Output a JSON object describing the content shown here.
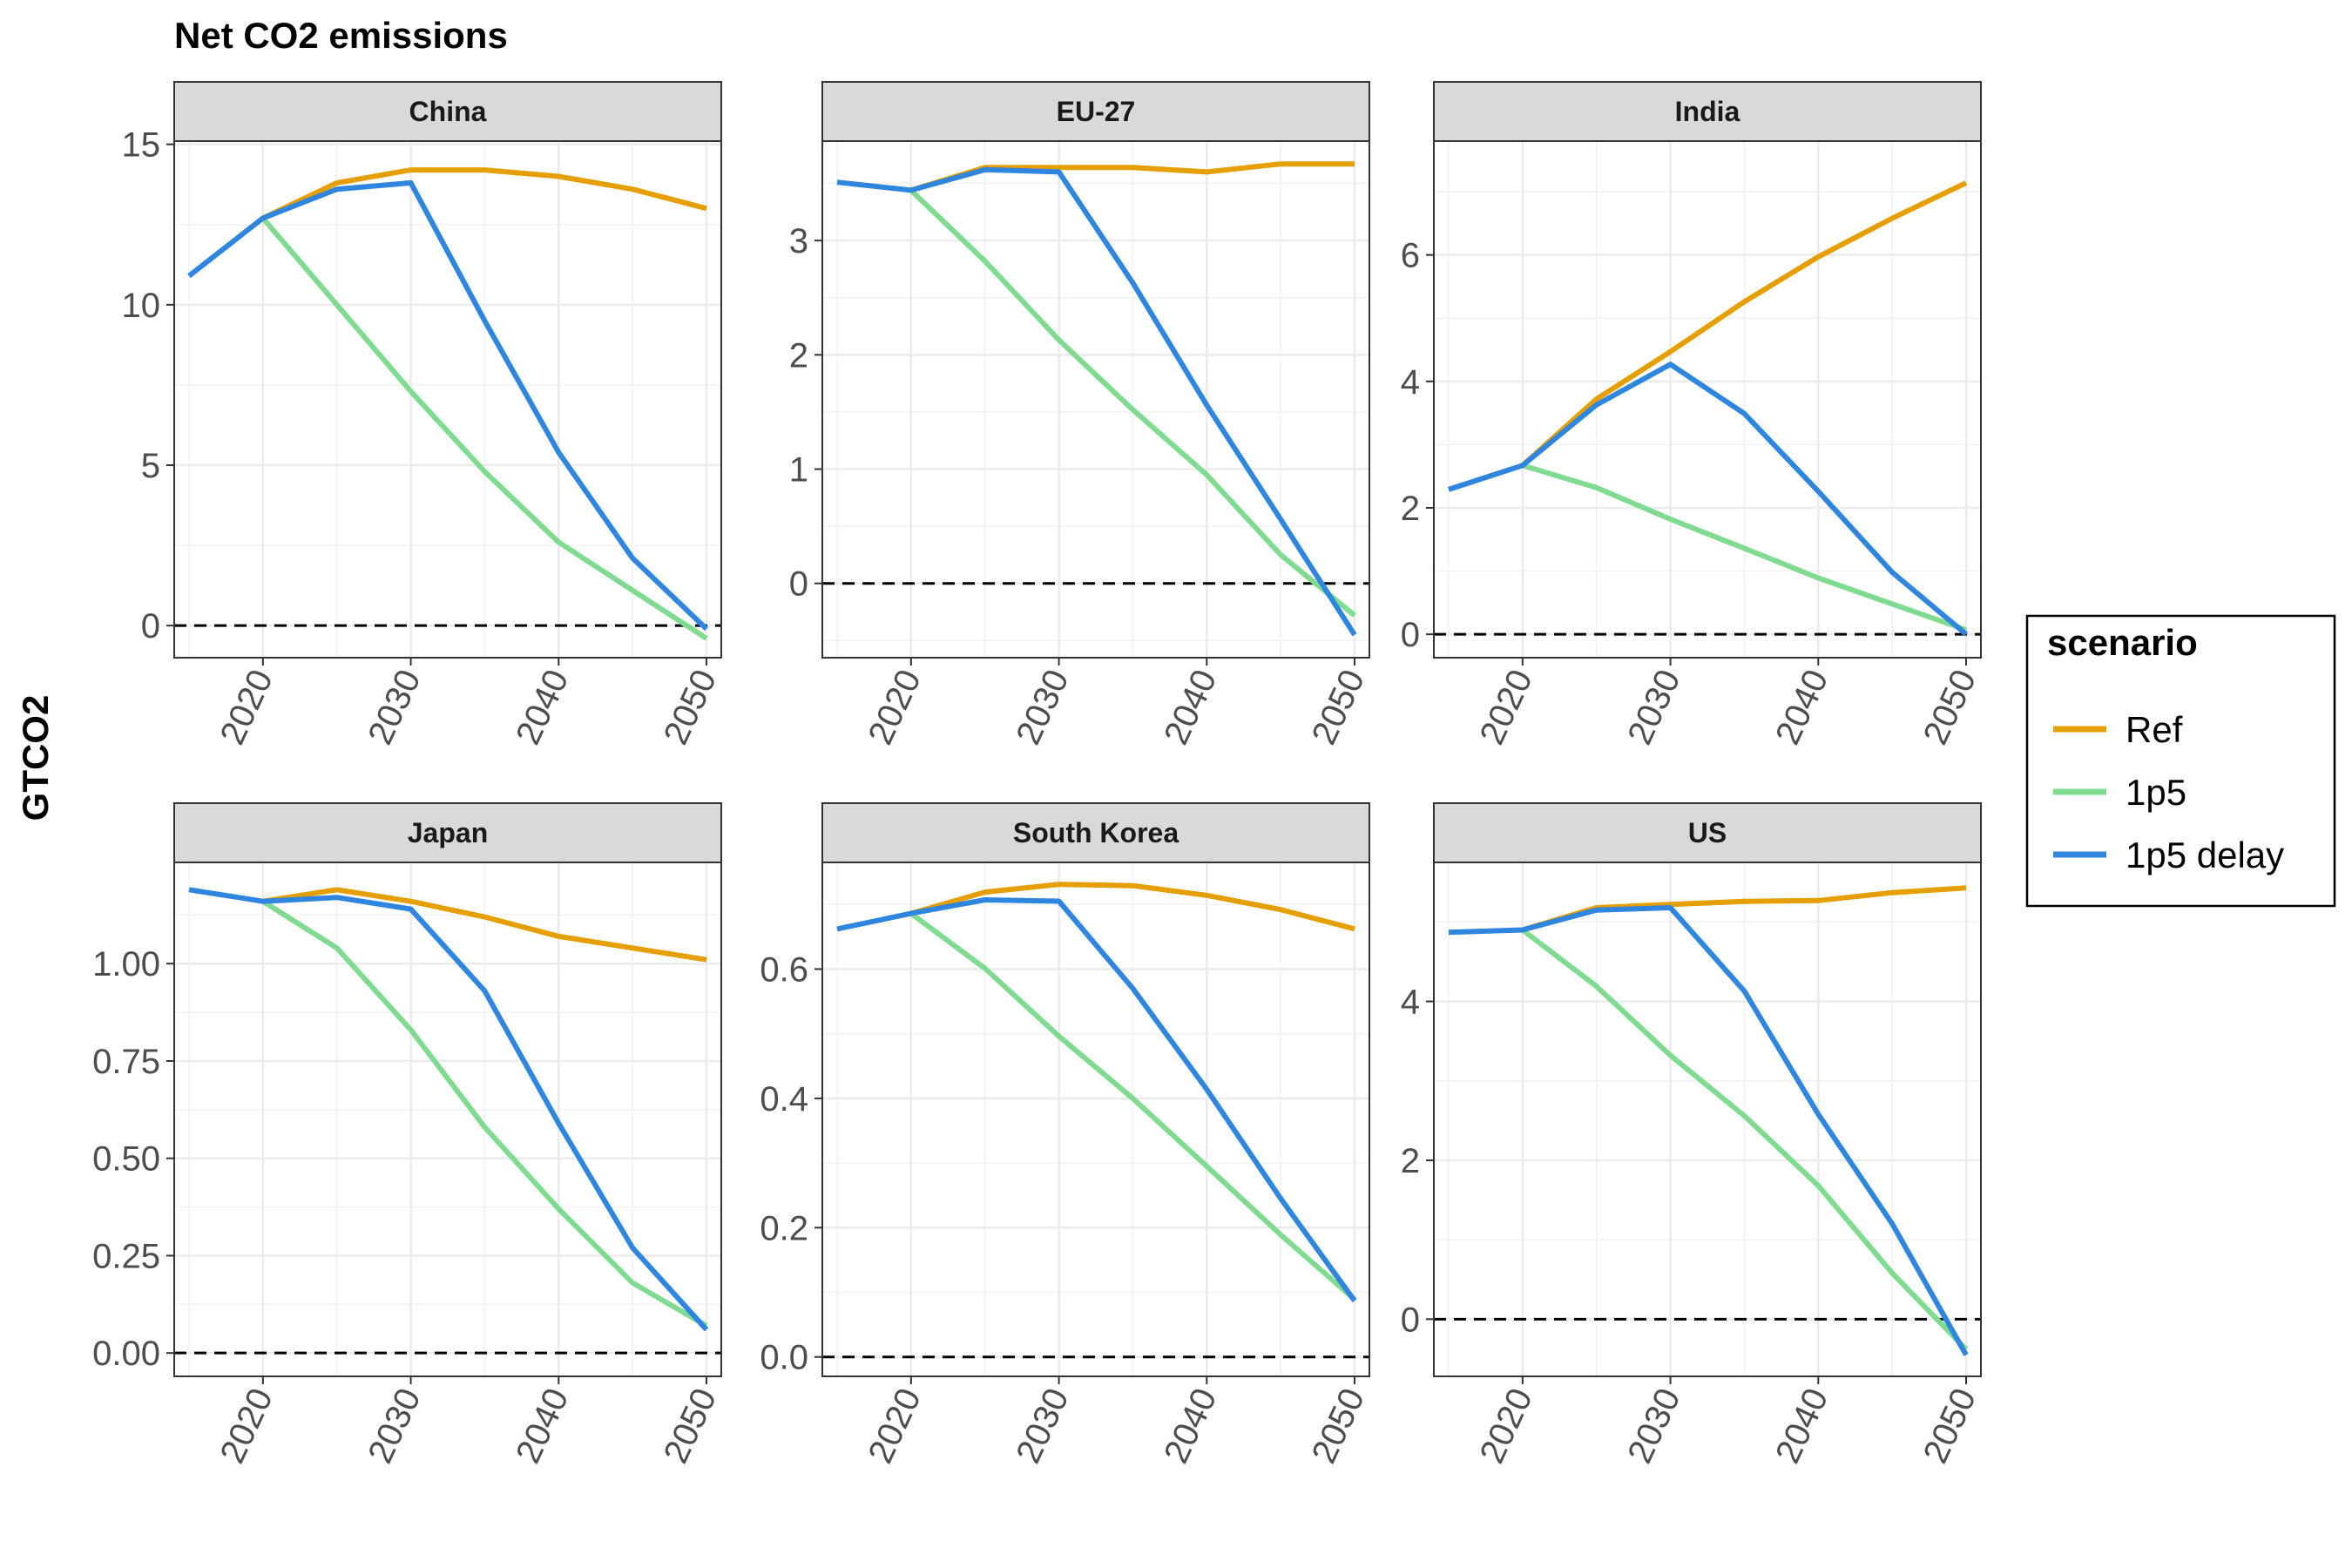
{
  "chart_data": {
    "type": "line",
    "title": "Net CO2 emissions",
    "ylabel": "GTCO2",
    "xlabel": "",
    "legend": {
      "title": "scenario",
      "placement": "right",
      "entries": [
        {
          "name": "Ref",
          "color": "#E69F00"
        },
        {
          "name": "1p5",
          "color": "#7FDB90"
        },
        {
          "name": "1p5 delay",
          "color": "#2F86DE"
        }
      ]
    },
    "reference_line": {
      "y": 0,
      "style": "dashed",
      "color": "#000000"
    },
    "grid": true,
    "x": [
      2015,
      2020,
      2025,
      2030,
      2035,
      2040,
      2045,
      2050
    ],
    "xlim": [
      2014,
      2051
    ],
    "x_ticks": [
      2020,
      2030,
      2040,
      2050
    ],
    "x_tick_labels": [
      "2020",
      "2030",
      "2040",
      "2050"
    ],
    "panels": [
      {
        "name": "China",
        "ylim": [
          -1.0,
          15.1
        ],
        "y_ticks": [
          0,
          5,
          10,
          15
        ],
        "y_tick_labels": [
          "0",
          "5",
          "10",
          "15"
        ],
        "series": [
          {
            "name": "Ref",
            "x": [
              2020,
              2025,
              2030,
              2035,
              2040,
              2045,
              2050
            ],
            "values": [
              12.7,
              13.8,
              14.2,
              14.2,
              14.0,
              13.6,
              13.0
            ]
          },
          {
            "name": "1p5",
            "x": [
              2020,
              2025,
              2030,
              2035,
              2040,
              2045,
              2050
            ],
            "values": [
              12.7,
              10.0,
              7.3,
              4.8,
              2.6,
              1.1,
              -0.4
            ]
          },
          {
            "name": "1p5 delay",
            "x": [
              2015,
              2020,
              2025,
              2030,
              2035,
              2040,
              2045,
              2050
            ],
            "values": [
              10.9,
              12.7,
              13.6,
              13.8,
              9.5,
              5.4,
              2.1,
              -0.1
            ]
          }
        ]
      },
      {
        "name": "EU-27",
        "ylim": [
          -0.65,
          3.87
        ],
        "y_ticks": [
          0,
          1,
          2,
          3
        ],
        "y_tick_labels": [
          "0",
          "1",
          "2",
          "3"
        ],
        "series": [
          {
            "name": "Ref",
            "x": [
              2020,
              2025,
              2030,
              2035,
              2040,
              2045,
              2050
            ],
            "values": [
              3.44,
              3.64,
              3.64,
              3.64,
              3.6,
              3.67,
              3.67
            ]
          },
          {
            "name": "1p5",
            "x": [
              2020,
              2025,
              2030,
              2035,
              2040,
              2045,
              2050
            ],
            "values": [
              3.44,
              2.82,
              2.13,
              1.52,
              0.95,
              0.25,
              -0.28
            ]
          },
          {
            "name": "1p5 delay",
            "x": [
              2015,
              2020,
              2025,
              2030,
              2035,
              2040,
              2045,
              2050
            ],
            "values": [
              3.51,
              3.44,
              3.62,
              3.6,
              2.63,
              1.56,
              0.56,
              -0.45
            ]
          }
        ]
      },
      {
        "name": "India",
        "ylim": [
          -0.37,
          7.8
        ],
        "y_ticks": [
          0,
          2,
          4,
          6
        ],
        "y_tick_labels": [
          "0",
          "2",
          "4",
          "6"
        ],
        "series": [
          {
            "name": "Ref",
            "x": [
              2020,
              2025,
              2030,
              2035,
              2040,
              2045,
              2050
            ],
            "values": [
              2.67,
              3.72,
              4.47,
              5.26,
              5.97,
              6.58,
              7.14
            ]
          },
          {
            "name": "1p5",
            "x": [
              2020,
              2025,
              2030,
              2035,
              2040,
              2045,
              2050
            ],
            "values": [
              2.67,
              2.32,
              1.82,
              1.36,
              0.89,
              0.48,
              0.07
            ]
          },
          {
            "name": "1p5 delay",
            "x": [
              2015,
              2020,
              2025,
              2030,
              2035,
              2040,
              2045,
              2050
            ],
            "values": [
              2.29,
              2.67,
              3.63,
              4.27,
              3.49,
              2.26,
              0.98,
              0.0
            ]
          }
        ]
      },
      {
        "name": "Japan",
        "ylim": [
          -0.06,
          1.26
        ],
        "y_ticks": [
          0,
          0.25,
          0.5,
          0.75,
          1.0
        ],
        "y_tick_labels": [
          "0.00",
          "0.25",
          "0.50",
          "0.75",
          "1.00"
        ],
        "series": [
          {
            "name": "Ref",
            "x": [
              2020,
              2025,
              2030,
              2035,
              2040,
              2045,
              2050
            ],
            "values": [
              1.16,
              1.19,
              1.16,
              1.12,
              1.07,
              1.04,
              1.01
            ]
          },
          {
            "name": "1p5",
            "x": [
              2020,
              2025,
              2030,
              2035,
              2040,
              2045,
              2050
            ],
            "values": [
              1.16,
              1.04,
              0.83,
              0.58,
              0.37,
              0.18,
              0.07
            ]
          },
          {
            "name": "1p5 delay",
            "x": [
              2015,
              2020,
              2025,
              2030,
              2035,
              2040,
              2045,
              2050
            ],
            "values": [
              1.19,
              1.16,
              1.17,
              1.14,
              0.93,
              0.59,
              0.27,
              0.06
            ]
          }
        ]
      },
      {
        "name": "South Korea",
        "ylim": [
          -0.03,
          0.765
        ],
        "y_ticks": [
          0,
          0.2,
          0.4,
          0.6
        ],
        "y_tick_labels": [
          "0.0",
          "0.2",
          "0.4",
          "0.6"
        ],
        "series": [
          {
            "name": "Ref",
            "x": [
              2020,
              2025,
              2030,
              2035,
              2040,
              2045,
              2050
            ],
            "values": [
              0.686,
              0.719,
              0.731,
              0.729,
              0.714,
              0.692,
              0.662
            ]
          },
          {
            "name": "1p5",
            "x": [
              2020,
              2025,
              2030,
              2035,
              2040,
              2045,
              2050
            ],
            "values": [
              0.686,
              0.601,
              0.496,
              0.4,
              0.295,
              0.189,
              0.089
            ]
          },
          {
            "name": "1p5 delay",
            "x": [
              2015,
              2020,
              2025,
              2030,
              2035,
              2040,
              2045,
              2050
            ],
            "values": [
              0.662,
              0.686,
              0.707,
              0.705,
              0.57,
              0.414,
              0.245,
              0.087
            ]
          }
        ]
      },
      {
        "name": "US",
        "ylim": [
          -0.72,
          5.75
        ],
        "y_ticks": [
          0,
          2,
          4
        ],
        "y_tick_labels": [
          "0",
          "2",
          "4"
        ],
        "series": [
          {
            "name": "Ref",
            "x": [
              2020,
              2025,
              2030,
              2035,
              2040,
              2045,
              2050
            ],
            "values": [
              4.9,
              5.18,
              5.22,
              5.26,
              5.27,
              5.37,
              5.43
            ]
          },
          {
            "name": "1p5",
            "x": [
              2020,
              2025,
              2030,
              2035,
              2040,
              2045,
              2050
            ],
            "values": [
              4.9,
              4.19,
              3.32,
              2.56,
              1.68,
              0.58,
              -0.38
            ]
          },
          {
            "name": "1p5 delay",
            "x": [
              2015,
              2020,
              2025,
              2030,
              2035,
              2040,
              2045,
              2050
            ],
            "values": [
              4.87,
              4.9,
              5.15,
              5.18,
              4.13,
              2.58,
              1.2,
              -0.45
            ]
          }
        ]
      }
    ]
  }
}
